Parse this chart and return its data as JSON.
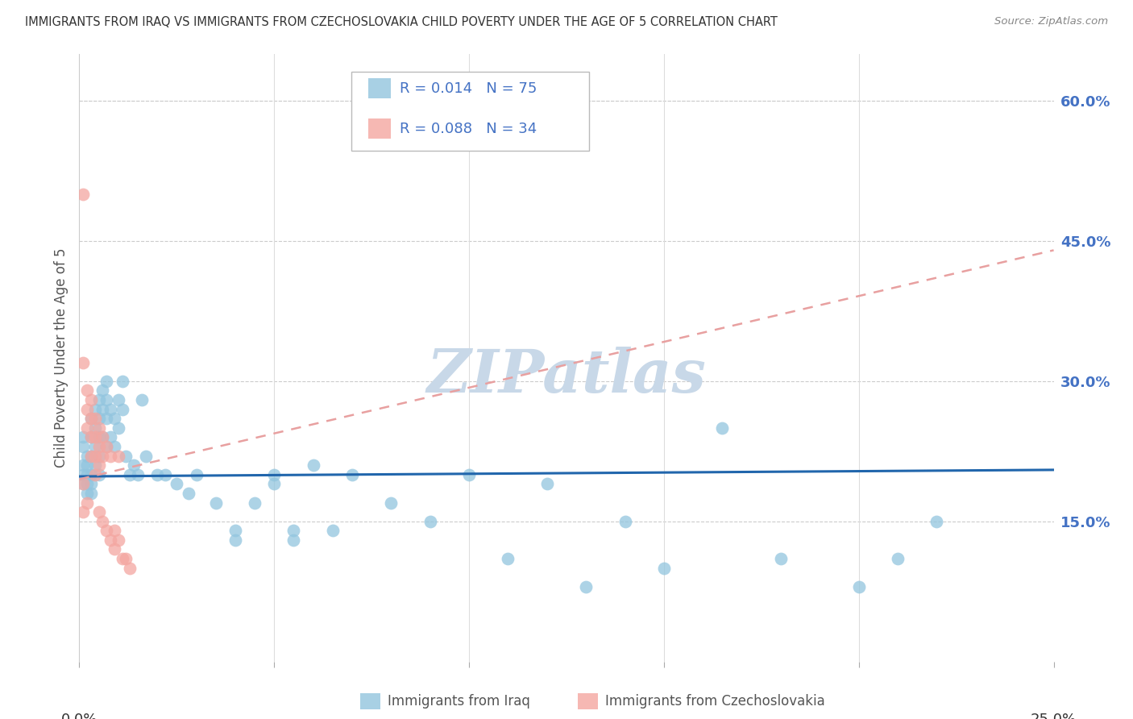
{
  "title": "IMMIGRANTS FROM IRAQ VS IMMIGRANTS FROM CZECHOSLOVAKIA CHILD POVERTY UNDER THE AGE OF 5 CORRELATION CHART",
  "source": "Source: ZipAtlas.com",
  "ylabel": "Child Poverty Under the Age of 5",
  "y_ticks": [
    "15.0%",
    "30.0%",
    "45.0%",
    "60.0%"
  ],
  "y_tick_vals": [
    0.15,
    0.3,
    0.45,
    0.6
  ],
  "xlim": [
    0.0,
    0.25
  ],
  "ylim": [
    0.0,
    0.65
  ],
  "iraq_color": "#92c5de",
  "czech_color": "#f4a6a0",
  "iraq_line_color": "#2166ac",
  "czech_line_color": "#e8a0a0",
  "watermark": "ZIPatlas",
  "watermark_color": "#c8d8e8",
  "iraq_x": [
    0.001,
    0.001,
    0.001,
    0.001,
    0.001,
    0.002,
    0.002,
    0.002,
    0.002,
    0.002,
    0.003,
    0.003,
    0.003,
    0.003,
    0.003,
    0.003,
    0.004,
    0.004,
    0.004,
    0.004,
    0.005,
    0.005,
    0.005,
    0.005,
    0.005,
    0.006,
    0.006,
    0.006,
    0.007,
    0.007,
    0.007,
    0.007,
    0.008,
    0.008,
    0.009,
    0.009,
    0.01,
    0.01,
    0.011,
    0.011,
    0.012,
    0.013,
    0.014,
    0.015,
    0.016,
    0.017,
    0.02,
    0.022,
    0.025,
    0.028,
    0.03,
    0.035,
    0.04,
    0.045,
    0.05,
    0.055,
    0.06,
    0.065,
    0.07,
    0.08,
    0.09,
    0.1,
    0.11,
    0.12,
    0.13,
    0.14,
    0.15,
    0.165,
    0.18,
    0.2,
    0.21,
    0.22,
    0.04,
    0.05,
    0.055
  ],
  "iraq_y": [
    0.2,
    0.23,
    0.19,
    0.21,
    0.24,
    0.22,
    0.2,
    0.19,
    0.21,
    0.18,
    0.26,
    0.24,
    0.22,
    0.2,
    0.19,
    0.18,
    0.27,
    0.25,
    0.23,
    0.21,
    0.28,
    0.26,
    0.24,
    0.22,
    0.2,
    0.29,
    0.27,
    0.24,
    0.3,
    0.28,
    0.26,
    0.23,
    0.27,
    0.24,
    0.26,
    0.23,
    0.28,
    0.25,
    0.3,
    0.27,
    0.22,
    0.2,
    0.21,
    0.2,
    0.28,
    0.22,
    0.2,
    0.2,
    0.19,
    0.18,
    0.2,
    0.17,
    0.14,
    0.17,
    0.2,
    0.13,
    0.21,
    0.14,
    0.2,
    0.17,
    0.15,
    0.2,
    0.11,
    0.19,
    0.08,
    0.15,
    0.1,
    0.25,
    0.11,
    0.08,
    0.11,
    0.15,
    0.13,
    0.19,
    0.14
  ],
  "czech_x": [
    0.001,
    0.001,
    0.001,
    0.002,
    0.002,
    0.002,
    0.002,
    0.003,
    0.003,
    0.003,
    0.003,
    0.004,
    0.004,
    0.004,
    0.004,
    0.005,
    0.005,
    0.005,
    0.005,
    0.006,
    0.006,
    0.006,
    0.007,
    0.007,
    0.008,
    0.008,
    0.009,
    0.009,
    0.01,
    0.01,
    0.011,
    0.012,
    0.013,
    0.001
  ],
  "czech_y": [
    0.5,
    0.32,
    0.19,
    0.29,
    0.27,
    0.25,
    0.17,
    0.28,
    0.26,
    0.24,
    0.22,
    0.26,
    0.24,
    0.22,
    0.2,
    0.25,
    0.23,
    0.21,
    0.16,
    0.24,
    0.22,
    0.15,
    0.23,
    0.14,
    0.22,
    0.13,
    0.14,
    0.12,
    0.13,
    0.22,
    0.11,
    0.11,
    0.1,
    0.16
  ],
  "iraq_trend_x": [
    0.0,
    0.25
  ],
  "iraq_trend_y": [
    0.198,
    0.205
  ],
  "czech_trend_x": [
    0.0,
    0.25
  ],
  "czech_trend_y": [
    0.195,
    0.44
  ]
}
